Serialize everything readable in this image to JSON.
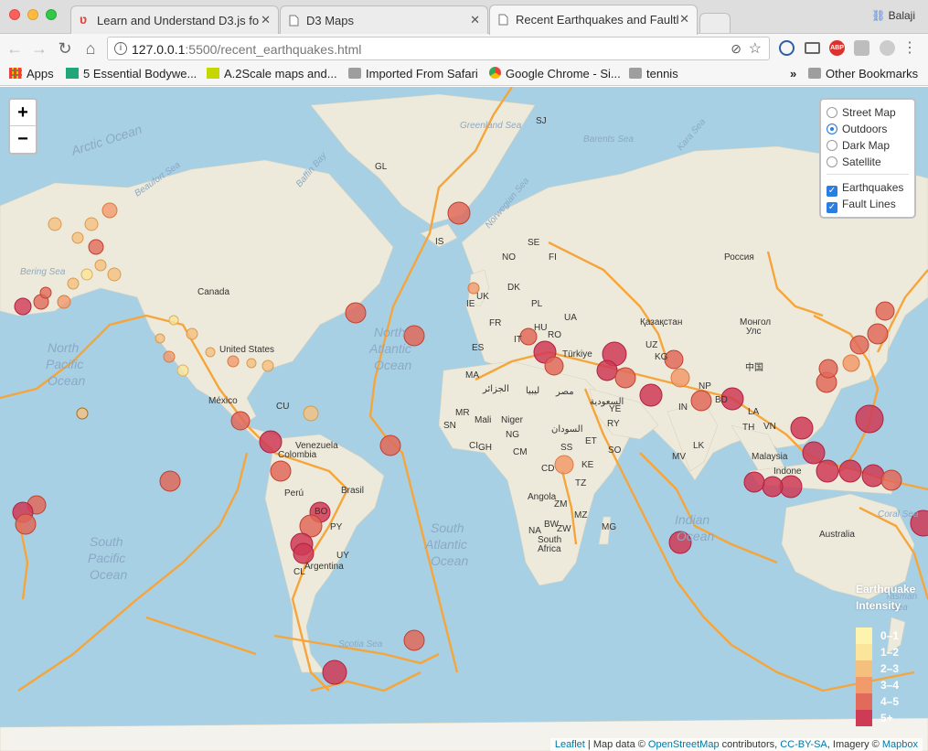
{
  "browser": {
    "tabs": [
      {
        "title": "Learn and Understand D3.js fo",
        "icon": "udemy-icon",
        "active": false
      },
      {
        "title": "D3 Maps",
        "icon": "page-icon",
        "active": false
      },
      {
        "title": "Recent Earthquakes and Faultl",
        "icon": "page-icon",
        "active": true
      }
    ],
    "user": "Balaji",
    "url_host": "127.0.0.1",
    "url_path": ":5500/recent_earthquakes.html",
    "bookmarks": [
      {
        "label": "Apps",
        "icon": "apps-grid-icon"
      },
      {
        "label": "5 Essential Bodywe...",
        "icon": "bookmark-green-icon"
      },
      {
        "label": "A.2Scale maps and...",
        "icon": "bookmark-yellow-icon"
      },
      {
        "label": "Imported From Safari",
        "icon": "folder-icon"
      },
      {
        "label": "Google Chrome - Si...",
        "icon": "chrome-icon"
      },
      {
        "label": "tennis",
        "icon": "folder-icon"
      }
    ],
    "overflow": "»",
    "other_bookmarks": "Other Bookmarks"
  },
  "map": {
    "zoom_in": "+",
    "zoom_out": "−",
    "base_layers": [
      {
        "label": "Street Map",
        "checked": false
      },
      {
        "label": "Outdoors",
        "checked": true
      },
      {
        "label": "Dark Map",
        "checked": false
      },
      {
        "label": "Satellite",
        "checked": false
      }
    ],
    "overlays": [
      {
        "label": "Earthquakes",
        "checked": true
      },
      {
        "label": "Fault Lines",
        "checked": true
      }
    ],
    "legend": {
      "title_line1": "Earthquake",
      "title_line2": "Intensity",
      "items": [
        {
          "label": "0–1",
          "color": "#fff3b0"
        },
        {
          "label": "1–2",
          "color": "#fbe59a"
        },
        {
          "label": "2–3",
          "color": "#f5c07e"
        },
        {
          "label": "3–4",
          "color": "#f19a6a"
        },
        {
          "label": "4–5",
          "color": "#e16a5a"
        },
        {
          "label": "5+",
          "color": "#cf3a55"
        }
      ]
    },
    "place_labels": {
      "arctic_ocean": "Arctic Ocean",
      "greenland_label": "GL",
      "greenland_sea": "Greenland Sea",
      "barents_sea": "Barents Sea",
      "kara_sea": "Kara Sea",
      "norwegian_sea": "Norwegian Sea",
      "baffin_bay": "Baffin Bay",
      "beaufort_sea": "Beaufort Sea",
      "bering_sea": "Bering Sea",
      "canada": "Canada",
      "united_states": "United States",
      "mexico": "México",
      "cuba": "CU",
      "venezuela": "Venezuela",
      "colombia": "Colombia",
      "peru": "Perú",
      "brasil": "Brasil",
      "bolivia": "BO",
      "paraguay": "PY",
      "uruguay": "UY",
      "chile": "CL",
      "argentina": "Argentina",
      "north_pacific_1": "North",
      "north_pacific_2": "Pacific",
      "north_pacific_3": "Ocean",
      "south_pacific_1": "South",
      "south_pacific_2": "Pacific",
      "south_pacific_3": "Ocean",
      "north_atlantic_1": "North",
      "north_atlantic_2": "Atlantic",
      "north_atlantic_3": "Ocean",
      "south_atlantic_1": "South",
      "south_atlantic_2": "Atlantic",
      "south_atlantic_3": "Ocean",
      "indian_ocean_1": "Indian",
      "indian_ocean_2": "Ocean",
      "tasman_sea_1": "Tasman",
      "tasman_sea_2": "Sea",
      "coral_sea": "Coral Sea",
      "scotia_sea": "Scotia Sea",
      "iceland": "IS",
      "uk": "UK",
      "ie": "IE",
      "fr": "FR",
      "es": "ES",
      "dk": "DK",
      "pl": "PL",
      "ua": "UA",
      "hu": "HU",
      "ro": "RO",
      "it": "IT",
      "se": "SE",
      "no": "NO",
      "fi": "FI",
      "russia": "Россия",
      "kazakhstan": "Қазақстан",
      "mongolia_1": "Монгол",
      "mongolia_2": "Улс",
      "china": "中国",
      "turkey": "Türkiye",
      "uz": "UZ",
      "kg": "KG",
      "np": "NP",
      "bd": "BD",
      "la": "LA",
      "vn": "VN",
      "th": "TH",
      "in": "IN",
      "lk": "LK",
      "mv": "MV",
      "malaysia": "Malaysia",
      "indonesia": "Indone",
      "australia": "Australia",
      "ma": "MA",
      "dz": "الجزائر",
      "ly": "ليبيا",
      "eg": "مصر",
      "sa": "السعودية",
      "ye": "YE",
      "ry": "RY",
      "mr": "MR",
      "mali": "Mali",
      "niger": "Niger",
      "sd": "السودان",
      "sn": "SN",
      "gh": "GH",
      "ci": "CI",
      "ng": "NG",
      "cm": "CM",
      "et": "ET",
      "ss": "SS",
      "so": "SO",
      "ke": "KE",
      "cd": "CD",
      "tz": "TZ",
      "angola": "Angola",
      "zm": "ZM",
      "mz": "MZ",
      "bw": "BW",
      "zw": "ZW",
      "na": "NA",
      "south_africa_1": "South",
      "south_africa_2": "Africa",
      "mg": "MG",
      "sj": "SJ"
    },
    "attribution": {
      "leaflet": "Leaflet",
      "text1": " | Map data © ",
      "osm": "OpenStreetMap",
      "text2": " contributors, ",
      "license": "CC-BY-SA",
      "text3": ", Imagery © ",
      "mapbox": "Mapbox"
    }
  }
}
